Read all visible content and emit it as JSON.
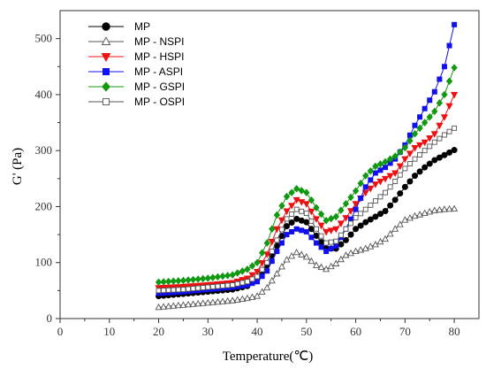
{
  "chart_data": {
    "type": "line",
    "xlabel": "Temperature(℃)",
    "ylabel": "G' (Pa)",
    "xlim": [
      0,
      85
    ],
    "ylim": [
      0,
      550
    ],
    "xticks": [
      0,
      10,
      20,
      30,
      40,
      50,
      60,
      70,
      80
    ],
    "yticks": [
      0,
      100,
      200,
      300,
      400,
      500
    ],
    "legend_position": "top-left",
    "grid": false,
    "series": [
      {
        "name": "MP",
        "color": "#000000",
        "marker": "circle",
        "points": [
          [
            20,
            40
          ],
          [
            25,
            44
          ],
          [
            30,
            48
          ],
          [
            35,
            52
          ],
          [
            38,
            58
          ],
          [
            40,
            70
          ],
          [
            42,
            95
          ],
          [
            44,
            130
          ],
          [
            46,
            165
          ],
          [
            48,
            178
          ],
          [
            50,
            172
          ],
          [
            52,
            148
          ],
          [
            54,
            125
          ],
          [
            56,
            125
          ],
          [
            58,
            140
          ],
          [
            60,
            160
          ],
          [
            62,
            172
          ],
          [
            64,
            182
          ],
          [
            66,
            192
          ],
          [
            68,
            212
          ],
          [
            70,
            235
          ],
          [
            72,
            255
          ],
          [
            74,
            270
          ],
          [
            76,
            283
          ],
          [
            78,
            292
          ],
          [
            80,
            301
          ]
        ]
      },
      {
        "name": "MP - NSPI",
        "color": "#555555",
        "marker": "triangle-open",
        "points": [
          [
            20,
            20
          ],
          [
            25,
            24
          ],
          [
            30,
            28
          ],
          [
            35,
            32
          ],
          [
            38,
            36
          ],
          [
            40,
            40
          ],
          [
            42,
            55
          ],
          [
            44,
            80
          ],
          [
            46,
            105
          ],
          [
            48,
            118
          ],
          [
            50,
            110
          ],
          [
            52,
            95
          ],
          [
            54,
            88
          ],
          [
            56,
            98
          ],
          [
            58,
            113
          ],
          [
            60,
            120
          ],
          [
            62,
            125
          ],
          [
            64,
            132
          ],
          [
            66,
            142
          ],
          [
            68,
            160
          ],
          [
            70,
            176
          ],
          [
            72,
            183
          ],
          [
            74,
            188
          ],
          [
            76,
            193
          ],
          [
            78,
            195
          ],
          [
            80,
            196
          ]
        ]
      },
      {
        "name": "MP - HSPI",
        "color": "#ee1111",
        "marker": "triangle-down",
        "points": [
          [
            20,
            55
          ],
          [
            25,
            57
          ],
          [
            30,
            60
          ],
          [
            35,
            64
          ],
          [
            38,
            72
          ],
          [
            40,
            84
          ],
          [
            42,
            115
          ],
          [
            44,
            160
          ],
          [
            46,
            192
          ],
          [
            48,
            212
          ],
          [
            50,
            205
          ],
          [
            52,
            178
          ],
          [
            54,
            155
          ],
          [
            56,
            160
          ],
          [
            58,
            180
          ],
          [
            60,
            205
          ],
          [
            62,
            225
          ],
          [
            64,
            240
          ],
          [
            66,
            250
          ],
          [
            68,
            260
          ],
          [
            70,
            285
          ],
          [
            72,
            305
          ],
          [
            74,
            315
          ],
          [
            76,
            330
          ],
          [
            78,
            360
          ],
          [
            80,
            400
          ]
        ]
      },
      {
        "name": "MP - ASPI",
        "color": "#1111ee",
        "marker": "square",
        "points": [
          [
            20,
            45
          ],
          [
            25,
            48
          ],
          [
            30,
            52
          ],
          [
            35,
            56
          ],
          [
            38,
            60
          ],
          [
            40,
            66
          ],
          [
            42,
            85
          ],
          [
            44,
            120
          ],
          [
            46,
            150
          ],
          [
            48,
            160
          ],
          [
            50,
            155
          ],
          [
            52,
            135
          ],
          [
            54,
            120
          ],
          [
            56,
            130
          ],
          [
            58,
            160
          ],
          [
            60,
            195
          ],
          [
            62,
            235
          ],
          [
            64,
            260
          ],
          [
            66,
            270
          ],
          [
            68,
            285
          ],
          [
            70,
            310
          ],
          [
            72,
            345
          ],
          [
            74,
            375
          ],
          [
            76,
            405
          ],
          [
            78,
            450
          ],
          [
            80,
            525
          ]
        ]
      },
      {
        "name": "MP - GSPI",
        "color": "#119911",
        "marker": "diamond",
        "points": [
          [
            20,
            65
          ],
          [
            25,
            68
          ],
          [
            30,
            72
          ],
          [
            35,
            78
          ],
          [
            38,
            88
          ],
          [
            40,
            100
          ],
          [
            42,
            135
          ],
          [
            44,
            185
          ],
          [
            46,
            218
          ],
          [
            48,
            232
          ],
          [
            50,
            225
          ],
          [
            52,
            198
          ],
          [
            54,
            175
          ],
          [
            56,
            182
          ],
          [
            58,
            205
          ],
          [
            60,
            228
          ],
          [
            62,
            255
          ],
          [
            64,
            272
          ],
          [
            66,
            280
          ],
          [
            68,
            290
          ],
          [
            70,
            305
          ],
          [
            72,
            330
          ],
          [
            74,
            350
          ],
          [
            76,
            370
          ],
          [
            78,
            400
          ],
          [
            80,
            448
          ]
        ]
      },
      {
        "name": "MP - OSPI",
        "color": "#555555",
        "marker": "square-open",
        "points": [
          [
            20,
            50
          ],
          [
            25,
            52
          ],
          [
            30,
            56
          ],
          [
            35,
            60
          ],
          [
            38,
            66
          ],
          [
            40,
            75
          ],
          [
            42,
            100
          ],
          [
            44,
            140
          ],
          [
            46,
            178
          ],
          [
            48,
            195
          ],
          [
            50,
            188
          ],
          [
            52,
            160
          ],
          [
            54,
            135
          ],
          [
            56,
            138
          ],
          [
            58,
            160
          ],
          [
            60,
            180
          ],
          [
            62,
            195
          ],
          [
            64,
            210
          ],
          [
            66,
            225
          ],
          [
            68,
            245
          ],
          [
            70,
            268
          ],
          [
            72,
            285
          ],
          [
            74,
            300
          ],
          [
            76,
            315
          ],
          [
            78,
            328
          ],
          [
            80,
            340
          ]
        ]
      }
    ]
  }
}
